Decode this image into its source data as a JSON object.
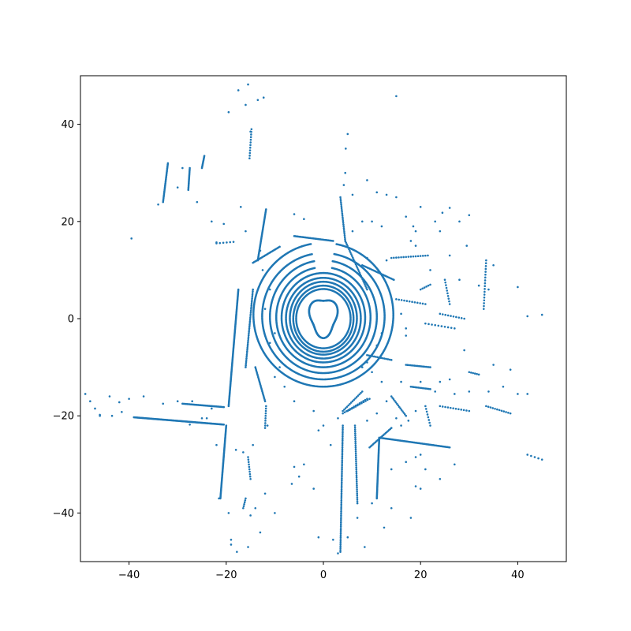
{
  "chart_data": {
    "type": "scatter",
    "title": "",
    "xlabel": "",
    "ylabel": "",
    "xlim": [
      -50,
      50
    ],
    "ylim": [
      -50,
      50
    ],
    "xticks": [
      -40,
      -20,
      0,
      20,
      40
    ],
    "yticks": [
      -40,
      -20,
      0,
      20,
      40
    ],
    "xtick_labels": [
      "−40",
      "−20",
      "0",
      "20",
      "40"
    ],
    "ytick_labels": [
      "−40",
      "−20",
      "0",
      "20",
      "40"
    ],
    "grid": false,
    "legend": "none",
    "marker_color": "#1f77b4",
    "series": [
      {
        "rings": [
          {
            "cx": 0,
            "cy": 0,
            "rx": 5.6,
            "ry": 6.1
          },
          {
            "cx": 0,
            "cy": 0,
            "rx": 6.2,
            "ry": 6.8
          },
          {
            "cx": 0,
            "cy": 0.1,
            "rx": 6.9,
            "ry": 7.5
          },
          {
            "cx": 0,
            "cy": 0.1,
            "rx": 7.7,
            "ry": 8.3
          },
          {
            "cx": 0,
            "cy": 0.2,
            "rx": 8.6,
            "ry": 9.2
          },
          {
            "cx": 0,
            "cy": 0.3,
            "rx": 9.7,
            "ry": 10.3
          },
          {
            "cx": 0,
            "cy": 0.4,
            "rx": 11.0,
            "ry": 11.6
          },
          {
            "cx": 0,
            "cy": 0.5,
            "rx": 12.6,
            "ry": 13.0
          },
          {
            "cx": 0,
            "cy": 0.8,
            "rx": 14.4,
            "ry": 14.8
          }
        ],
        "segments": [
          {
            "from": [
              -39,
              -20.3
            ],
            "to": [
              -20.5,
              -21.8
            ],
            "n": 120
          },
          {
            "from": [
              -20,
              -22
            ],
            "to": [
              -21.2,
              -37
            ],
            "n": 70
          },
          {
            "from": [
              -17.5,
              6
            ],
            "to": [
              -19.5,
              -18
            ],
            "n": 110
          },
          {
            "from": [
              -20.5,
              -18.2
            ],
            "to": [
              -29,
              -17.5
            ],
            "n": 35
          },
          {
            "from": [
              -11.8,
              22.5
            ],
            "to": [
              -13.5,
              12
            ],
            "n": 45
          },
          {
            "from": [
              -9,
              14.8
            ],
            "to": [
              -14.5,
              11.5
            ],
            "n": 25
          },
          {
            "from": [
              -6,
              17
            ],
            "to": [
              2,
              16
            ],
            "n": 35
          },
          {
            "from": [
              -32,
              32
            ],
            "to": [
              -33,
              24
            ],
            "n": 30
          },
          {
            "from": [
              -27.5,
              31
            ],
            "to": [
              -27.8,
              26.5
            ],
            "n": 18
          },
          {
            "from": [
              -24.5,
              33.5
            ],
            "to": [
              -25,
              31
            ],
            "n": 12
          },
          {
            "from": [
              -14.8,
              39
            ],
            "to": [
              -15.2,
              33
            ],
            "n": 12
          },
          {
            "from": [
              -14.5,
              6
            ],
            "to": [
              -16,
              -10
            ],
            "n": 45
          },
          {
            "from": [
              -14,
              -10
            ],
            "to": [
              -12,
              -17
            ],
            "n": 25
          },
          {
            "from": [
              11.5,
              -24.5
            ],
            "to": [
              11,
              -37
            ],
            "n": 60
          },
          {
            "from": [
              11.5,
              -24.5
            ],
            "to": [
              26,
              -26.5
            ],
            "n": 65
          },
          {
            "from": [
              14,
              -22.5
            ],
            "to": [
              9.5,
              -26.5
            ],
            "n": 20
          },
          {
            "from": [
              4,
              -19
            ],
            "to": [
              8,
              -15
            ],
            "n": 15
          },
          {
            "from": [
              14.5,
              8
            ],
            "to": [
              8,
              11
            ],
            "n": 25
          },
          {
            "from": [
              4.5,
              16
            ],
            "to": [
              9,
              6
            ],
            "n": 30
          },
          {
            "from": [
              3.5,
              25
            ],
            "to": [
              4.5,
              16
            ],
            "n": 25
          },
          {
            "from": [
              9,
              -7.5
            ],
            "to": [
              14,
              -8.5
            ],
            "n": 15
          },
          {
            "from": [
              9,
              -16.5
            ],
            "to": [
              4,
              -19.5
            ],
            "n": 14
          },
          {
            "from": [
              5,
              -19
            ],
            "to": [
              9.5,
              -16.5
            ],
            "n": 12
          },
          {
            "from": [
              17,
              -9.5
            ],
            "to": [
              22,
              -10
            ],
            "n": 18
          },
          {
            "from": [
              18,
              -14
            ],
            "to": [
              22,
              -14.5
            ],
            "n": 14
          },
          {
            "from": [
              4,
              -22
            ],
            "to": [
              3.5,
              -48
            ],
            "n": 70
          },
          {
            "from": [
              6.5,
              -22
            ],
            "to": [
              7,
              -38
            ],
            "n": 40
          },
          {
            "from": [
              -15.5,
              -28.5
            ],
            "to": [
              -15,
              -33
            ],
            "n": 10
          },
          {
            "from": [
              -16,
              -37
            ],
            "to": [
              -16.5,
              -39
            ],
            "n": 6
          },
          {
            "from": [
              -11.8,
              -18
            ],
            "to": [
              -12,
              -22.5
            ],
            "n": 10
          },
          {
            "from": [
              -49,
              -15.5
            ],
            "to": [
              -46,
              -20
            ],
            "n": 4
          },
          {
            "from": [
              -18.5,
              15.8
            ],
            "to": [
              -22,
              15.5
            ],
            "n": 6
          },
          {
            "from": [
              14,
              12.5
            ],
            "to": [
              21.5,
              13
            ],
            "n": 16
          },
          {
            "from": [
              15,
              4
            ],
            "to": [
              21,
              3
            ],
            "n": 12
          },
          {
            "from": [
              21,
              -1
            ],
            "to": [
              27,
              -2
            ],
            "n": 10
          },
          {
            "from": [
              24,
              1
            ],
            "to": [
              29,
              0
            ],
            "n": 10
          },
          {
            "from": [
              30,
              -11
            ],
            "to": [
              32,
              -11.5
            ],
            "n": 6
          },
          {
            "from": [
              24,
              -18
            ],
            "to": [
              30,
              -19
            ],
            "n": 12
          },
          {
            "from": [
              33.5,
              -18
            ],
            "to": [
              38.5,
              -19.5
            ],
            "n": 12
          },
          {
            "from": [
              42,
              -28
            ],
            "to": [
              45,
              -29
            ],
            "n": 5
          },
          {
            "from": [
              21,
              -18
            ],
            "to": [
              22,
              -22
            ],
            "n": 8
          },
          {
            "from": [
              14,
              -16
            ],
            "to": [
              17,
              -20
            ],
            "n": 14
          },
          {
            "from": [
              20,
              6
            ],
            "to": [
              22,
              7
            ],
            "n": 6
          },
          {
            "from": [
              33.5,
              12
            ],
            "to": [
              33,
              2
            ],
            "n": 18
          },
          {
            "from": [
              25,
              8
            ],
            "to": [
              26,
              3
            ],
            "n": 10
          }
        ],
        "points": [
          [
            -39.5,
            16.5
          ],
          [
            -34,
            23.5
          ],
          [
            -20.5,
            19.5
          ],
          [
            -19.5,
            42.5
          ],
          [
            -17.5,
            47
          ],
          [
            -15.5,
            48.2
          ],
          [
            -16,
            44
          ],
          [
            -13.5,
            45
          ],
          [
            -12.3,
            45.5
          ],
          [
            -15,
            38.5
          ],
          [
            -6,
            21.5
          ],
          [
            -4,
            20.5
          ],
          [
            5,
            38
          ],
          [
            4.6,
            35
          ],
          [
            4.5,
            30
          ],
          [
            4.2,
            27.5
          ],
          [
            6,
            25.5
          ],
          [
            9,
            28.5
          ],
          [
            11,
            26
          ],
          [
            13,
            25.5
          ],
          [
            15,
            25
          ],
          [
            17,
            21
          ],
          [
            18.5,
            19
          ],
          [
            15,
            45.8
          ],
          [
            20,
            23
          ],
          [
            23,
            20
          ],
          [
            24,
            18
          ],
          [
            28,
            20
          ],
          [
            30,
            21.3
          ],
          [
            24.5,
            21.8
          ],
          [
            26,
            22.8
          ],
          [
            29.5,
            15
          ],
          [
            34,
            6
          ],
          [
            40,
            6.5
          ],
          [
            42,
            0.5
          ],
          [
            45,
            0.8
          ],
          [
            35,
            -9.5
          ],
          [
            38.5,
            -10.5
          ],
          [
            40,
            -15.5
          ],
          [
            42,
            -15.5
          ],
          [
            37,
            -14
          ],
          [
            34,
            -15
          ],
          [
            30,
            -15
          ],
          [
            27,
            -15.5
          ],
          [
            29,
            -6.5
          ],
          [
            32,
            6.8
          ],
          [
            35,
            11
          ],
          [
            26,
            13
          ],
          [
            22,
            10
          ],
          [
            28,
            8
          ],
          [
            18,
            16
          ],
          [
            19,
            18
          ],
          [
            19,
            15
          ],
          [
            13,
            12
          ],
          [
            9,
            12.5
          ],
          [
            12,
            19
          ],
          [
            10,
            20
          ],
          [
            8,
            20
          ],
          [
            6,
            18
          ],
          [
            16,
            1
          ],
          [
            17,
            -2
          ],
          [
            17,
            -3.5
          ],
          [
            12,
            -3
          ],
          [
            11,
            -5.5
          ],
          [
            12,
            -13
          ],
          [
            16,
            -13
          ],
          [
            20,
            -13
          ],
          [
            23,
            -15
          ],
          [
            24,
            -13
          ],
          [
            26,
            -12.5
          ],
          [
            -4,
            -30
          ],
          [
            -5,
            -32.5
          ],
          [
            -6,
            -30.5
          ],
          [
            -6.5,
            -34
          ],
          [
            -10,
            -40
          ],
          [
            -13,
            -44
          ],
          [
            -15.5,
            -47
          ],
          [
            -17.8,
            -48
          ],
          [
            -19,
            -46.5
          ],
          [
            -19,
            -45.5
          ],
          [
            -19.5,
            -40
          ],
          [
            -21.5,
            -37
          ],
          [
            -15,
            -40.5
          ],
          [
            -14,
            -39
          ],
          [
            -12,
            -36
          ],
          [
            -2,
            -35
          ],
          [
            -1,
            -45
          ],
          [
            2,
            -45.5
          ],
          [
            3,
            -48.3
          ],
          [
            5,
            -45
          ],
          [
            7,
            -41
          ],
          [
            8.5,
            -47
          ],
          [
            10,
            -38
          ],
          [
            14,
            -39
          ],
          [
            18,
            -41
          ],
          [
            12.5,
            -43
          ],
          [
            14,
            -31
          ],
          [
            17,
            -29.5
          ],
          [
            19,
            -28.5
          ],
          [
            20,
            -28
          ],
          [
            21,
            -31
          ],
          [
            24,
            -33
          ],
          [
            27,
            -30
          ],
          [
            19,
            -34.5
          ],
          [
            20,
            -35
          ],
          [
            -25,
            -20.5
          ],
          [
            -27,
            -17
          ],
          [
            -30,
            -17
          ],
          [
            -33,
            -17.5
          ],
          [
            -37,
            -16
          ],
          [
            -40,
            -16.5
          ],
          [
            -42,
            -17.2
          ],
          [
            -44,
            -16
          ],
          [
            -43.5,
            -20
          ],
          [
            -41.5,
            -19.2
          ],
          [
            -46,
            -19.8
          ],
          [
            -8,
            -14
          ],
          [
            -6,
            -17
          ],
          [
            -9,
            -10
          ],
          [
            -10,
            -12
          ],
          [
            -11,
            -5
          ],
          [
            -10,
            -3
          ],
          [
            -12,
            2
          ],
          [
            -11,
            6
          ],
          [
            -12.5,
            10
          ],
          [
            -13,
            14
          ],
          [
            -16,
            18
          ],
          [
            -17,
            23
          ],
          [
            -22,
            15.7
          ],
          [
            -23,
            20
          ],
          [
            -26,
            24
          ],
          [
            -29,
            31
          ],
          [
            -30,
            27
          ],
          [
            -11.5,
            -22
          ],
          [
            -14.5,
            -26
          ],
          [
            -16.5,
            -27.5
          ],
          [
            -18,
            -27
          ],
          [
            -22,
            -26
          ],
          [
            -23,
            -18.5
          ],
          [
            -24,
            -20.5
          ],
          [
            -27.5,
            -21.8
          ],
          [
            3,
            -20.5
          ],
          [
            0,
            -22
          ],
          [
            -1,
            -23
          ],
          [
            1.5,
            -26
          ],
          [
            -2,
            -19
          ],
          [
            8,
            -10
          ],
          [
            9,
            -9
          ],
          [
            10,
            -11
          ],
          [
            13,
            -17
          ],
          [
            11,
            -19.5
          ],
          [
            9,
            -21
          ],
          [
            15,
            -20.5
          ],
          [
            16,
            -22
          ],
          [
            17.5,
            -21
          ],
          [
            19,
            -19
          ]
        ]
      }
    ]
  }
}
